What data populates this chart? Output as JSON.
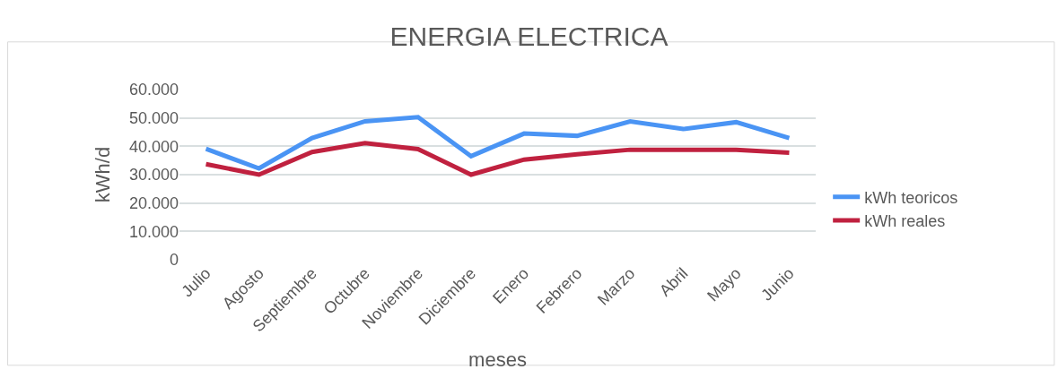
{
  "chart_data": {
    "type": "line",
    "title": "ENERGIA ELECTRICA",
    "xlabel": "meses",
    "ylabel": "kWh/d",
    "categories": [
      "Julio",
      "Agosto",
      "Septiembre",
      "Octubre",
      "Noviembre",
      "Diciembre",
      "Enero",
      "Febrero",
      "Marzo",
      "Abril",
      "Mayo",
      "Junio"
    ],
    "series": [
      {
        "name": "kWh teoricos",
        "color": "#4a94f4",
        "values": [
          39100,
          32200,
          42900,
          48800,
          50300,
          36500,
          44500,
          43700,
          48800,
          46100,
          48500,
          42900
        ]
      },
      {
        "name": "kWh reales",
        "color": "#c0213f",
        "values": [
          33700,
          30000,
          38000,
          41100,
          39000,
          30000,
          35300,
          37200,
          38800,
          38800,
          38800,
          37700
        ]
      }
    ],
    "ylim": [
      0,
      60000
    ],
    "yticks": [
      {
        "value": 0,
        "label": "0"
      },
      {
        "value": 10000,
        "label": "10.000"
      },
      {
        "value": 20000,
        "label": "20.000"
      },
      {
        "value": 30000,
        "label": "30.000"
      },
      {
        "value": 40000,
        "label": "40.000"
      },
      {
        "value": 50000,
        "label": "50.000"
      },
      {
        "value": 60000,
        "label": "60.000"
      }
    ],
    "grid": "y",
    "legend": "right",
    "marker": "none",
    "line_style": "solid"
  }
}
